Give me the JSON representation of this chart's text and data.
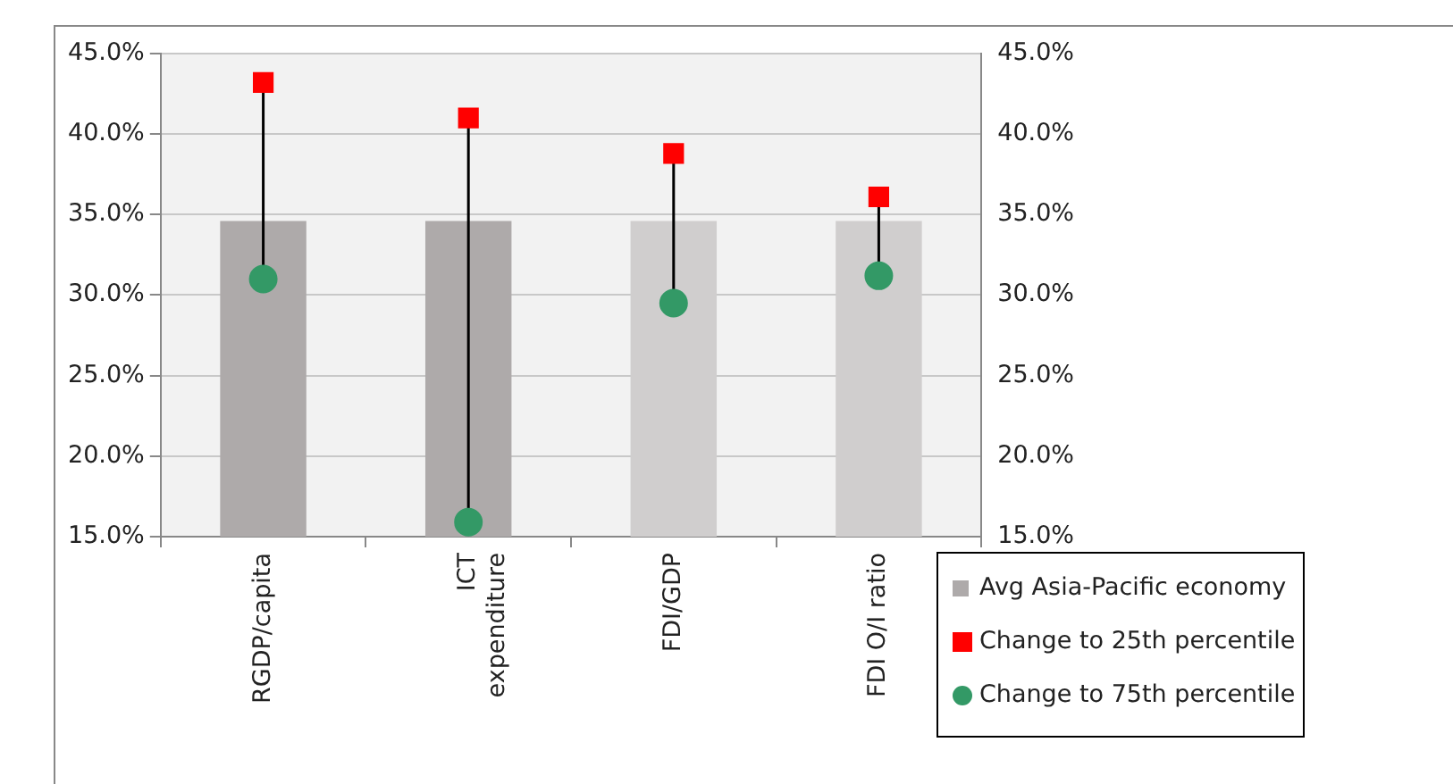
{
  "chart_data": {
    "type": "bar",
    "categories": [
      "RGDP/capita",
      "ICT expenditure",
      "FDI/GDP",
      "FDI O/I ratio"
    ],
    "series": [
      {
        "name": "Avg Asia-Pacific economy",
        "colors": [
          "#aeaaaa",
          "#aeaaaa",
          "#d0cece",
          "#d0cece"
        ],
        "values": [
          34.6,
          34.6,
          34.6,
          34.6
        ]
      },
      {
        "name": "Change to 25th percentile",
        "type": "scatter",
        "marker": "square",
        "color": "#ff0000",
        "values": [
          43.2,
          41.0,
          38.8,
          36.1
        ]
      },
      {
        "name": "Change to 75th percentile",
        "type": "scatter",
        "marker": "circle",
        "color": "#339966",
        "values": [
          31.0,
          15.9,
          29.5,
          31.2
        ]
      }
    ],
    "ylim": [
      15,
      45
    ],
    "yticks": [
      {
        "value": 15,
        "label": "15.0%"
      },
      {
        "value": 20,
        "label": "20.0%"
      },
      {
        "value": 25,
        "label": "25.0%"
      },
      {
        "value": 30,
        "label": "30.0%"
      },
      {
        "value": 35,
        "label": "35.0%"
      },
      {
        "value": 40,
        "label": "40.0%"
      },
      {
        "value": 45,
        "label": "45.0%"
      }
    ],
    "y2lim": [
      15,
      45
    ],
    "y2ticks": [
      {
        "value": 15,
        "label": "15.0%"
      },
      {
        "value": 20,
        "label": "20.0%"
      },
      {
        "value": 25,
        "label": "25.0%"
      },
      {
        "value": 30,
        "label": "30.0%"
      },
      {
        "value": 35,
        "label": "35.0%"
      },
      {
        "value": 40,
        "label": "40.0%"
      },
      {
        "value": 45,
        "label": "45.0%"
      }
    ],
    "grid": "y",
    "legend": "bottom right"
  }
}
